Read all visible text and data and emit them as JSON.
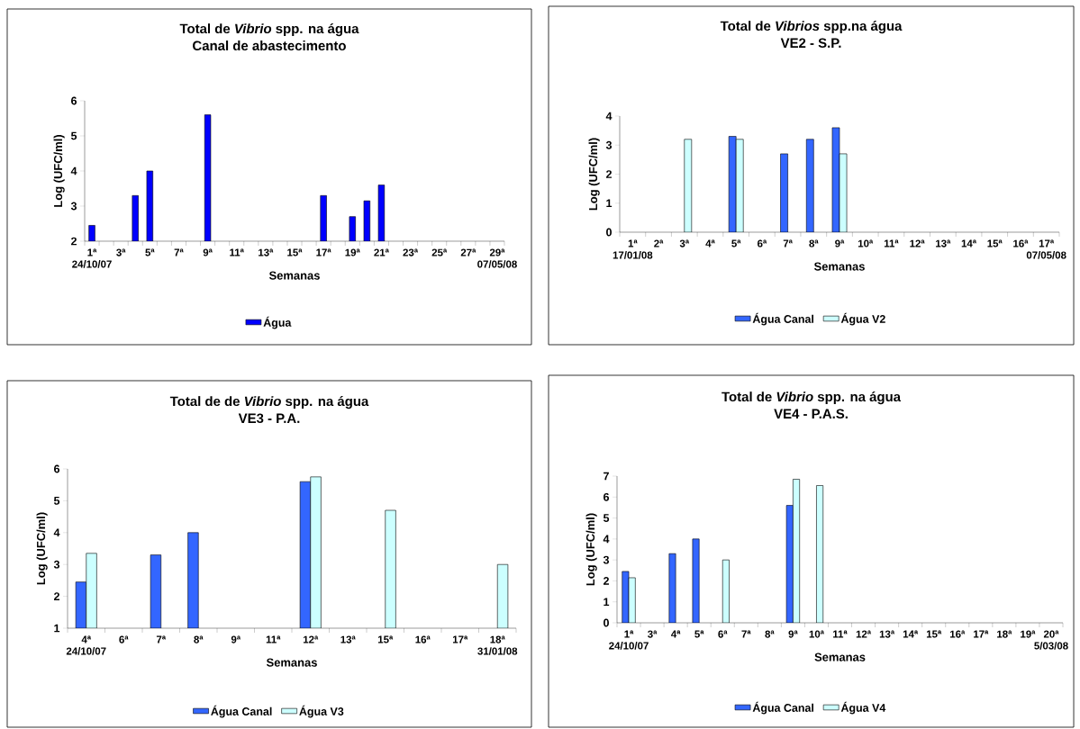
{
  "chart_data": [
    {
      "type": "bar",
      "title": "Total de *Vibrio* spp. na água",
      "subtitle": "Canal de abastecimento",
      "xlabel": "Semanas",
      "ylabel": "Log (UFC/ml)",
      "categories": [
        "1ª",
        null,
        "3ª",
        null,
        "5ª",
        null,
        "7ª",
        null,
        "9ª",
        null,
        "11ª",
        null,
        "13ª",
        null,
        "15ª",
        null,
        "17ª",
        null,
        "19ª",
        null,
        "21ª",
        null,
        "23ª",
        null,
        "25ª",
        null,
        "27ª",
        null,
        "29ª"
      ],
      "series": [
        {
          "name": "Água",
          "color": "#0000ff",
          "values": [
            2.45,
            null,
            null,
            3.3,
            4.0,
            null,
            null,
            null,
            5.6,
            null,
            null,
            null,
            null,
            null,
            null,
            null,
            3.3,
            null,
            2.7,
            3.15,
            3.6,
            null,
            null,
            null,
            null,
            null,
            null,
            null,
            null
          ]
        }
      ],
      "ylim": [
        2,
        6
      ],
      "yticks": [
        2,
        3,
        4,
        5,
        6
      ],
      "legend": "bottom",
      "annotations": [
        "24/10/07",
        "07/05/08"
      ]
    },
    {
      "type": "bar",
      "title": "Total de *Vibrios* spp.na água",
      "subtitle": "VE2 - S.P.",
      "xlabel": "Semanas",
      "ylabel": "Log (UFC/ml)",
      "categories": [
        "1ª",
        "2ª",
        "3ª",
        "4ª",
        "5ª",
        "6ª",
        "7ª",
        "8ª",
        "9ª",
        "10ª",
        "11ª",
        "12ª",
        "13ª",
        "14ª",
        "15ª",
        "16ª",
        "17ª"
      ],
      "series": [
        {
          "name": "Água Canal",
          "color": "#3366ff",
          "values": [
            null,
            null,
            null,
            null,
            3.3,
            null,
            2.7,
            3.2,
            3.6,
            null,
            null,
            null,
            null,
            null,
            null,
            null,
            null
          ]
        },
        {
          "name": "Água V2",
          "color": "#ccffff",
          "values": [
            null,
            null,
            3.2,
            null,
            3.2,
            null,
            null,
            null,
            2.7,
            null,
            null,
            null,
            null,
            null,
            null,
            null,
            null
          ]
        }
      ],
      "ylim": [
        0,
        4
      ],
      "yticks": [
        0,
        1,
        2,
        3,
        4
      ],
      "legend": "bottom",
      "annotations": [
        "17/01/08",
        "07/05/08"
      ]
    },
    {
      "type": "bar",
      "title": "Total de de *Vibrio* spp. na água",
      "subtitle": "VE3 - P.A.",
      "xlabel": "Semanas",
      "ylabel": "Log (UFC/ml)",
      "categories": [
        "4ª",
        "6ª",
        "7ª",
        "8ª",
        "9ª",
        "11ª",
        "12ª",
        "13ª",
        "15ª",
        "16ª",
        "17ª",
        "18ª"
      ],
      "series": [
        {
          "name": "Água Canal",
          "color": "#3366ff",
          "values": [
            2.45,
            null,
            3.3,
            4.0,
            null,
            null,
            5.6,
            null,
            null,
            null,
            null,
            null
          ]
        },
        {
          "name": "Água V3",
          "color": "#ccffff",
          "values": [
            3.35,
            null,
            null,
            null,
            null,
            null,
            5.75,
            null,
            4.7,
            null,
            null,
            3.0
          ]
        }
      ],
      "ylim": [
        1,
        6
      ],
      "yticks": [
        1,
        2,
        3,
        4,
        5,
        6
      ],
      "legend": "bottom",
      "annotations": [
        "24/10/07",
        "31/01/08"
      ]
    },
    {
      "type": "bar",
      "title": "Total de *Vibrio* spp. na água",
      "subtitle": "VE4 - P.A.S.",
      "xlabel": "Semanas",
      "ylabel": "Log (UFC/ml)",
      "categories": [
        "1ª",
        "3ª",
        "4ª",
        "5ª",
        "6ª",
        "7ª",
        "8ª",
        "9ª",
        "10ª",
        "11ª",
        "12ª",
        "13ª",
        "14ª",
        "15ª",
        "16ª",
        "17ª",
        "18ª",
        "19ª",
        "20ª"
      ],
      "series": [
        {
          "name": "Água Canal",
          "color": "#3366ff",
          "values": [
            2.45,
            null,
            3.3,
            4.0,
            null,
            null,
            null,
            5.6,
            null,
            null,
            null,
            null,
            null,
            null,
            null,
            null,
            null,
            null,
            null
          ]
        },
        {
          "name": "Água V4",
          "color": "#ccffff",
          "values": [
            2.15,
            null,
            null,
            null,
            3.0,
            null,
            null,
            6.85,
            6.55,
            null,
            null,
            null,
            null,
            null,
            null,
            null,
            null,
            null,
            null
          ]
        }
      ],
      "ylim": [
        0,
        7
      ],
      "yticks": [
        0,
        1,
        2,
        3,
        4,
        5,
        6,
        7
      ],
      "legend": "bottom",
      "annotations": [
        "24/10/07",
        "5/03/08"
      ]
    }
  ]
}
